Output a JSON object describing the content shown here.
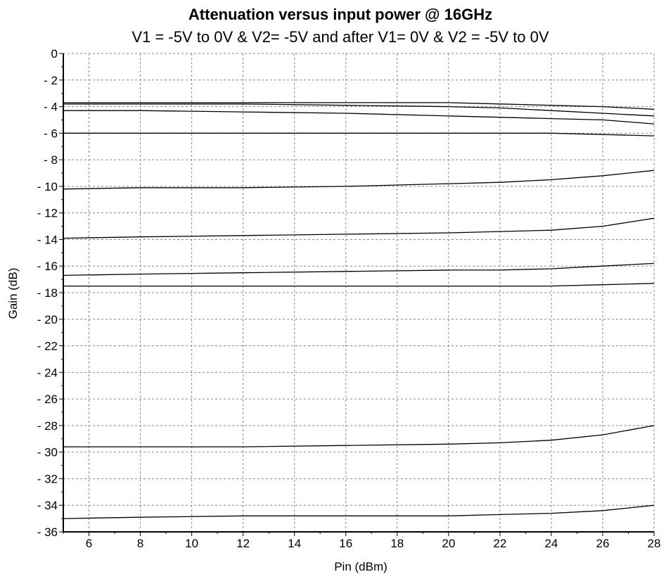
{
  "chart_data": {
    "type": "line",
    "title": "Attenuation versus input power @ 16GHz",
    "subtitle": "V1 = -5V to 0V & V2= -5V and after V1= 0V & V2 = -5V to 0V",
    "xlabel": "Pin (dBm)",
    "ylabel": "Gain (dB)",
    "xlim": [
      5,
      28
    ],
    "ylim": [
      -36,
      0
    ],
    "x_ticks": [
      6,
      8,
      10,
      12,
      14,
      16,
      18,
      20,
      22,
      24,
      26,
      28
    ],
    "x_tick_labels": [
      "6",
      "8",
      "10",
      "12",
      "14",
      "16",
      "18",
      "20",
      "22",
      "24",
      "26",
      "28"
    ],
    "y_ticks": [
      0,
      -2,
      -4,
      -6,
      -8,
      -10,
      -12,
      -14,
      -16,
      -18,
      -20,
      -22,
      -24,
      -26,
      -28,
      -30,
      -32,
      -34,
      -36
    ],
    "y_tick_labels": [
      "0",
      "- 2",
      "- 4",
      "- 6",
      "- 8",
      "- 10",
      "- 12",
      "- 14",
      "- 16",
      "- 18",
      "- 20",
      "- 22",
      "- 24",
      "- 26",
      "- 28",
      "- 30",
      "- 32",
      "- 34",
      "- 36"
    ],
    "grid": true,
    "x": [
      5,
      8,
      12,
      16,
      20,
      22,
      24,
      26,
      28
    ],
    "series": [
      {
        "values": [
          -3.7,
          -3.7,
          -3.7,
          -3.7,
          -3.7,
          -3.8,
          -3.9,
          -4.0,
          -4.2
        ]
      },
      {
        "values": [
          -3.8,
          -3.8,
          -3.8,
          -3.9,
          -4.0,
          -4.1,
          -4.3,
          -4.5,
          -4.7
        ]
      },
      {
        "values": [
          -4.3,
          -4.3,
          -4.4,
          -4.5,
          -4.7,
          -4.8,
          -4.9,
          -5.0,
          -5.3
        ]
      },
      {
        "values": [
          -6.0,
          -6.0,
          -6.0,
          -6.0,
          -6.0,
          -6.0,
          -6.0,
          -6.1,
          -6.2
        ]
      },
      {
        "values": [
          -10.2,
          -10.1,
          -10.1,
          -10.0,
          -9.8,
          -9.7,
          -9.5,
          -9.2,
          -8.8
        ]
      },
      {
        "values": [
          -13.9,
          -13.8,
          -13.7,
          -13.6,
          -13.5,
          -13.4,
          -13.3,
          -13.0,
          -12.4
        ]
      },
      {
        "values": [
          -16.7,
          -16.6,
          -16.5,
          -16.4,
          -16.3,
          -16.3,
          -16.2,
          -16.0,
          -15.8
        ]
      },
      {
        "values": [
          -17.5,
          -17.5,
          -17.5,
          -17.5,
          -17.5,
          -17.5,
          -17.5,
          -17.4,
          -17.3
        ]
      },
      {
        "values": [
          -29.6,
          -29.6,
          -29.6,
          -29.5,
          -29.4,
          -29.3,
          -29.1,
          -28.7,
          -28.0
        ]
      },
      {
        "values": [
          -35.0,
          -34.9,
          -34.8,
          -34.8,
          -34.8,
          -34.7,
          -34.6,
          -34.4,
          -34.0
        ]
      }
    ]
  }
}
